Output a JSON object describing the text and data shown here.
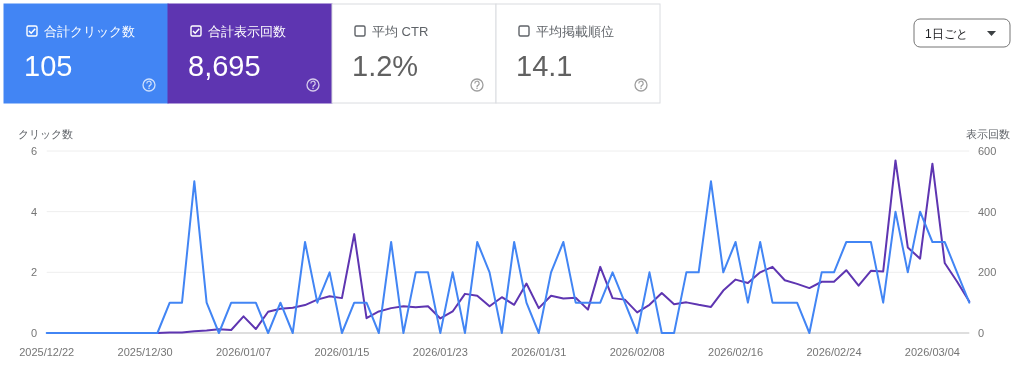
{
  "chart_data": [
    {
      "type": "other",
      "categories": [
        "合計クリック数",
        "合計表示回数",
        "平均 CTR",
        "平均掲載順位"
      ],
      "value_labels": [
        "105",
        "8,695",
        "1.2%",
        "14.1"
      ],
      "colors": [
        "#4285f4",
        "#5e35b1",
        "#ffffff",
        "#ffffff"
      ],
      "annotations": [
        "1日ごと"
      ]
    },
    {
      "type": "line",
      "ylabel": "クリック数",
      "y2label": "表示回数",
      "x": [
        "2025-12-22",
        "2025-12-23",
        "2025-12-24",
        "2025-12-25",
        "2025-12-26",
        "2025-12-27",
        "2025-12-28",
        "2025-12-29",
        "2025-12-30",
        "2025-12-31",
        "2026-01-01",
        "2026-01-02",
        "2026-01-03",
        "2026-01-04",
        "2026-01-05",
        "2026-01-06",
        "2026-01-07",
        "2026-01-08",
        "2026-01-09",
        "2026-01-10",
        "2026-01-11",
        "2026-01-12",
        "2026-01-13",
        "2026-01-14",
        "2026-01-15",
        "2026-01-16",
        "2026-01-17",
        "2026-01-18",
        "2026-01-19",
        "2026-01-20",
        "2026-01-21",
        "2026-01-22",
        "2026-01-23",
        "2026-01-24",
        "2026-01-25",
        "2026-01-26",
        "2026-01-27",
        "2026-01-28",
        "2026-01-29",
        "2026-01-30",
        "2026-01-31",
        "2026-02-01",
        "2026-02-02",
        "2026-02-03",
        "2026-02-04",
        "2026-02-05",
        "2026-02-06",
        "2026-02-07",
        "2026-02-08",
        "2026-02-09",
        "2026-02-10",
        "2026-02-11",
        "2026-02-12",
        "2026-02-13",
        "2026-02-14",
        "2026-02-15",
        "2026-02-16",
        "2026-02-17",
        "2026-02-18",
        "2026-02-19",
        "2026-02-20",
        "2026-02-21",
        "2026-02-22",
        "2026-02-23",
        "2026-02-24",
        "2026-02-25",
        "2026-02-26",
        "2026-02-27",
        "2026-02-28",
        "2026-03-01",
        "2026-03-02",
        "2026-03-03",
        "2026-03-04",
        "2026-03-05",
        "2026-03-06",
        "2026-03-07"
      ],
      "series": [
        {
          "color": "#4285f4",
          "values": [
            0,
            0,
            0,
            0,
            0,
            0,
            0,
            0,
            0,
            0,
            1,
            1,
            5,
            1,
            0,
            1,
            1,
            1,
            0,
            1,
            0,
            3,
            1,
            2,
            0,
            1,
            1,
            0,
            3,
            0,
            2,
            2,
            0,
            2,
            0,
            3,
            2,
            0,
            3,
            1,
            0,
            2,
            3,
            1,
            1,
            1,
            2,
            1,
            0,
            2,
            0,
            0,
            2,
            2,
            5,
            2,
            3,
            1,
            3,
            1,
            1,
            1,
            0,
            2,
            2,
            3,
            3,
            3,
            1,
            4,
            2,
            4,
            3,
            3,
            2,
            1
          ]
        },
        {
          "color": "#5e35b1",
          "axis": "y2",
          "values": [
            null,
            null,
            null,
            null,
            null,
            null,
            null,
            null,
            null,
            0,
            2,
            2,
            6,
            8,
            12,
            10,
            55,
            13,
            70,
            80,
            83,
            92,
            110,
            121,
            115,
            326,
            49,
            71,
            82,
            88,
            85,
            88,
            48,
            71,
            129,
            123,
            88,
            118,
            93,
            163,
            82,
            123,
            114,
            116,
            77,
            218,
            115,
            110,
            68,
            93,
            132,
            95,
            101,
            93,
            86,
            140,
            176,
            165,
            200,
            218,
            174,
            162,
            148,
            169,
            169,
            207,
            156,
            205,
            203,
            569,
            282,
            245,
            558,
            231,
            170,
            104
          ]
        }
      ],
      "xlim": [
        "2025-12-22",
        "2026-03-07"
      ],
      "xticks": [
        {
          "value": "2025-12-22",
          "label": "2025/12/22"
        },
        {
          "value": "2025-12-30",
          "label": "2025/12/30"
        },
        {
          "value": "2026-01-07",
          "label": "2026/01/07"
        },
        {
          "value": "2026-01-15",
          "label": "2026/01/15"
        },
        {
          "value": "2026-01-23",
          "label": "2026/01/23"
        },
        {
          "value": "2026-01-31",
          "label": "2026/01/31"
        },
        {
          "value": "2026-02-08",
          "label": "2026/02/08"
        },
        {
          "value": "2026-02-16",
          "label": "2026/02/16"
        },
        {
          "value": "2026-02-24",
          "label": "2026/02/24"
        },
        {
          "value": "2026-03-04",
          "label": "2026/03/04"
        }
      ],
      "ylim": [
        0,
        6
      ],
      "yticks": [
        0,
        2,
        4,
        6
      ],
      "y2lim": [
        0,
        600
      ],
      "y2ticks": [
        0,
        200,
        400,
        600
      ],
      "grid": "y",
      "marker": "none",
      "line_style": "solid"
    }
  ]
}
